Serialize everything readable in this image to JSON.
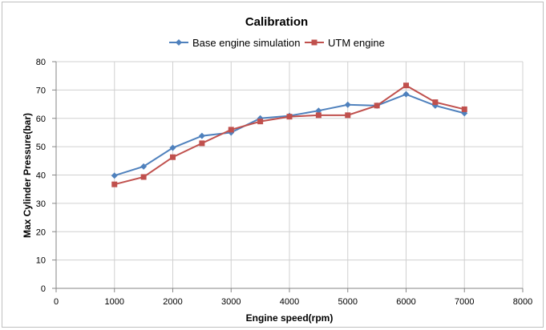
{
  "chart_data": {
    "type": "line",
    "title": "Calibration",
    "xlabel": "Engine speed(rpm)",
    "ylabel": "Max Cylinder Pressure(bar)",
    "xlim": [
      0,
      8000
    ],
    "ylim": [
      0,
      80
    ],
    "xticks": [
      0,
      1000,
      2000,
      3000,
      4000,
      5000,
      6000,
      7000,
      8000
    ],
    "yticks": [
      0,
      10,
      20,
      30,
      40,
      50,
      60,
      70,
      80
    ],
    "grid": true,
    "legend_position": "top",
    "x": [
      1000,
      1500,
      2000,
      2500,
      3000,
      3500,
      4000,
      4500,
      5000,
      5500,
      6000,
      6500,
      7000
    ],
    "series": [
      {
        "name": "Base engine simulation",
        "color": "#4f81bd",
        "marker": "diamond",
        "values": [
          39.8,
          43.0,
          49.6,
          53.8,
          55.0,
          60.0,
          60.9,
          62.7,
          64.8,
          64.5,
          68.5,
          64.5,
          61.8
        ]
      },
      {
        "name": "UTM engine",
        "color": "#c0504d",
        "marker": "square",
        "values": [
          36.7,
          39.3,
          46.3,
          51.2,
          56.0,
          58.9,
          60.6,
          61.1,
          61.1,
          64.5,
          71.6,
          65.7,
          63.2
        ]
      }
    ]
  }
}
